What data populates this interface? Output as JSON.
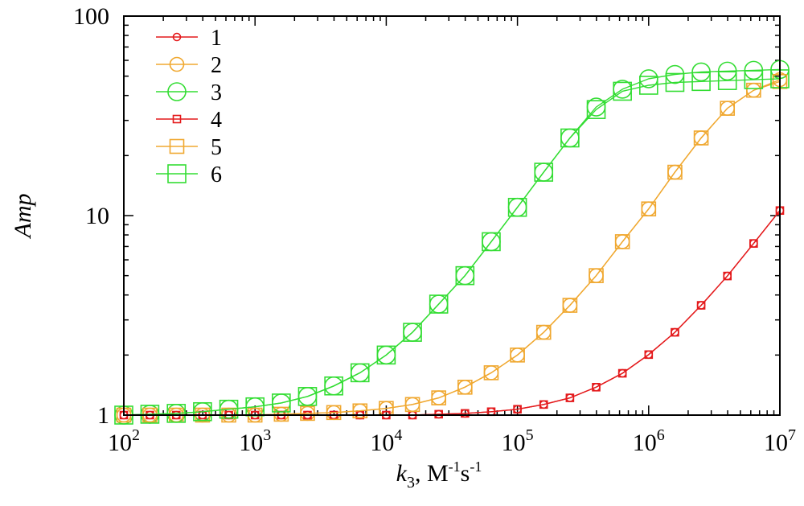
{
  "chart_data": {
    "type": "line",
    "scale": {
      "x": "log",
      "y": "log"
    },
    "xlim": [
      100,
      10000000
    ],
    "ylim": [
      1,
      100
    ],
    "xlabel": {
      "main": "k",
      "sub": "3",
      "rest": ", M",
      "exp1": "-1",
      "s": "s",
      "exp2": "-1"
    },
    "ylabel": "Amp",
    "x_ticks": [
      {
        "value": 100,
        "base": "10",
        "exp": "2"
      },
      {
        "value": 1000,
        "base": "10",
        "exp": "3"
      },
      {
        "value": 10000,
        "base": "10",
        "exp": "4"
      },
      {
        "value": 100000,
        "base": "10",
        "exp": "5"
      },
      {
        "value": 1000000,
        "base": "10",
        "exp": "6"
      },
      {
        "value": 10000000,
        "base": "10",
        "exp": "7"
      }
    ],
    "y_ticks": [
      {
        "value": 1,
        "label": "1"
      },
      {
        "value": 10,
        "label": "10"
      },
      {
        "value": 100,
        "label": "100"
      }
    ],
    "legend_position": "top-left",
    "x": [
      100,
      158,
      251,
      398,
      631,
      1000,
      1585,
      2512,
      3981,
      6310,
      10000,
      15849,
      25119,
      39811,
      63096,
      100000,
      158489,
      251189,
      398107,
      630957,
      1000000,
      1584893,
      2511886,
      3981072,
      6309573,
      10000000
    ],
    "series": [
      {
        "name": "1",
        "color": "#e41a1c",
        "marker": "circle",
        "size": "small",
        "values": [
          1,
          1,
          1,
          1,
          1,
          1,
          1,
          1,
          1,
          1,
          1,
          1,
          1.01,
          1.02,
          1.04,
          1.07,
          1.13,
          1.22,
          1.38,
          1.62,
          2.01,
          2.6,
          3.55,
          4.98,
          7.25,
          10.6
        ]
      },
      {
        "name": "2",
        "color": "#f0a830",
        "marker": "circle",
        "size": "medium",
        "values": [
          1,
          1,
          1,
          1,
          1,
          1,
          1.01,
          1.02,
          1.03,
          1.05,
          1.08,
          1.13,
          1.22,
          1.38,
          1.63,
          2.0,
          2.6,
          3.55,
          5.0,
          7.4,
          10.8,
          16.5,
          24.5,
          34.5,
          42.5,
          48
        ]
      },
      {
        "name": "3",
        "color": "#33dd33",
        "marker": "circle",
        "size": "large",
        "values": [
          1,
          1.01,
          1.02,
          1.04,
          1.07,
          1.1,
          1.15,
          1.24,
          1.4,
          1.63,
          2.0,
          2.6,
          3.6,
          5.0,
          7.4,
          11,
          16.5,
          24.5,
          35,
          43,
          48.5,
          51,
          52.5,
          53,
          53.5,
          54
        ]
      },
      {
        "name": "4",
        "color": "#e41a1c",
        "marker": "square",
        "size": "small",
        "values": [
          1,
          1,
          1,
          1,
          1,
          1,
          1,
          1,
          1,
          1,
          1,
          1,
          1.01,
          1.02,
          1.04,
          1.07,
          1.13,
          1.22,
          1.38,
          1.62,
          2.01,
          2.6,
          3.55,
          4.98,
          7.25,
          10.6
        ]
      },
      {
        "name": "5",
        "color": "#f0a830",
        "marker": "square",
        "size": "medium",
        "values": [
          1,
          1,
          1,
          1,
          1,
          1,
          1.01,
          1.02,
          1.03,
          1.05,
          1.08,
          1.13,
          1.22,
          1.38,
          1.63,
          2.0,
          2.6,
          3.55,
          5.0,
          7.4,
          10.8,
          16.5,
          24.5,
          34.5,
          42.5,
          47
        ]
      },
      {
        "name": "6",
        "color": "#33dd33",
        "marker": "square",
        "size": "large",
        "values": [
          1,
          1.01,
          1.02,
          1.04,
          1.07,
          1.1,
          1.15,
          1.24,
          1.4,
          1.63,
          2.0,
          2.6,
          3.6,
          5.0,
          7.4,
          11,
          16.5,
          24.5,
          34,
          42,
          45,
          46.5,
          47,
          47.5,
          48,
          48.5
        ]
      }
    ]
  }
}
